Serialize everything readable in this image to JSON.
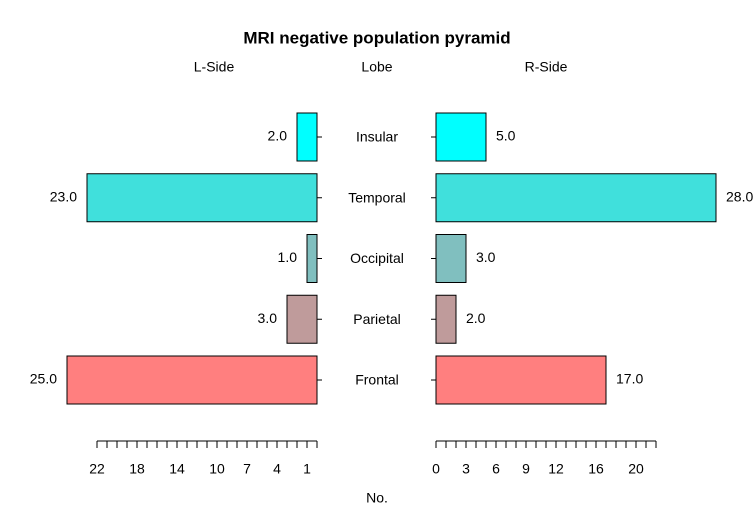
{
  "chart_data": {
    "type": "pyramid",
    "title": "MRI negative population pyramid",
    "category_label": "Lobe",
    "xlabel": "No.",
    "categories": [
      "Frontal",
      "Parietal",
      "Occipital",
      "Temporal",
      "Insular"
    ],
    "colors": [
      "#ff7f7f",
      "#bf9b9b",
      "#80bfbf",
      "#40e0dc",
      "#00ffff"
    ],
    "series": [
      {
        "name": "L-Side",
        "values": [
          25,
          3,
          1,
          23,
          2
        ],
        "value_labels": [
          "25.0",
          "3.0",
          "1.0",
          "23.0",
          "2.0"
        ],
        "xlim": [
          0,
          22
        ],
        "xticks": [
          22,
          18,
          14,
          10,
          7,
          4,
          1
        ],
        "xminorticks": [
          0,
          1,
          2,
          3,
          4,
          5,
          6,
          7,
          8,
          9,
          10,
          11,
          12,
          13,
          14,
          15,
          16,
          17,
          18,
          19,
          20,
          21,
          22
        ]
      },
      {
        "name": "R-Side",
        "values": [
          17,
          2,
          3,
          28,
          5
        ],
        "value_labels": [
          "17.0",
          "2.0",
          "3.0",
          "28.0",
          "5.0"
        ],
        "xlim": [
          0,
          22
        ],
        "xticks": [
          0,
          3,
          6,
          9,
          12,
          16,
          20
        ],
        "xminorticks": [
          0,
          1,
          2,
          3,
          4,
          5,
          6,
          7,
          8,
          9,
          10,
          11,
          12,
          13,
          14,
          15,
          16,
          17,
          18,
          19,
          20,
          21,
          22
        ]
      }
    ]
  }
}
